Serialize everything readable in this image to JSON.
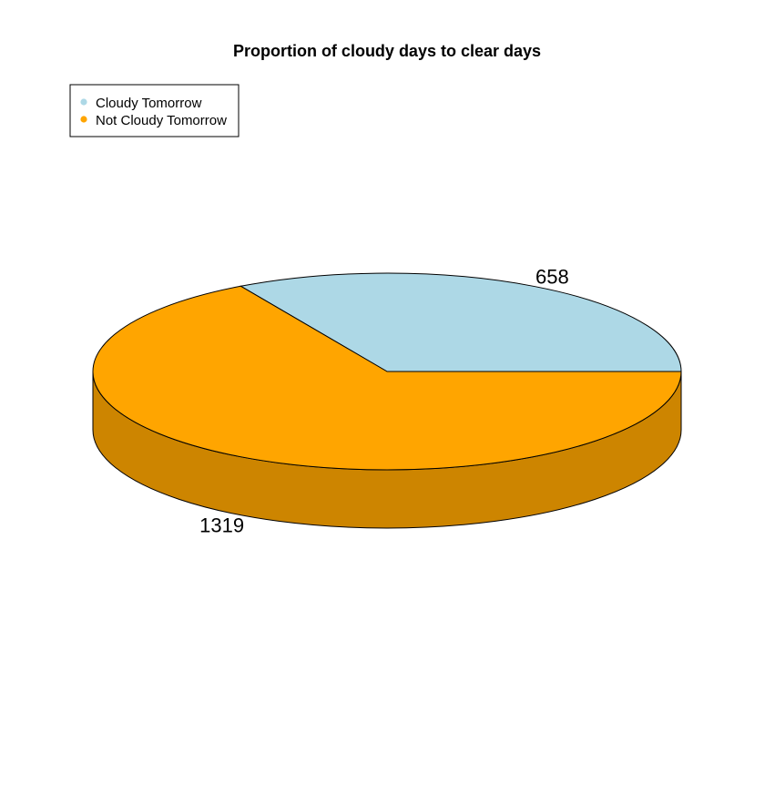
{
  "chart_data": {
    "type": "pie",
    "style": "3d",
    "title": "Proportion of cloudy days to clear days",
    "categories": [
      "Cloudy Tomorrow",
      "Not Cloudy Tomorrow"
    ],
    "values": [
      658,
      1319
    ],
    "colors": [
      "#ADD8E6",
      "#FFA500"
    ],
    "side_colors": [
      "#8AADB8",
      "#CD8500"
    ],
    "legend_position": "top-left",
    "grid": false
  }
}
